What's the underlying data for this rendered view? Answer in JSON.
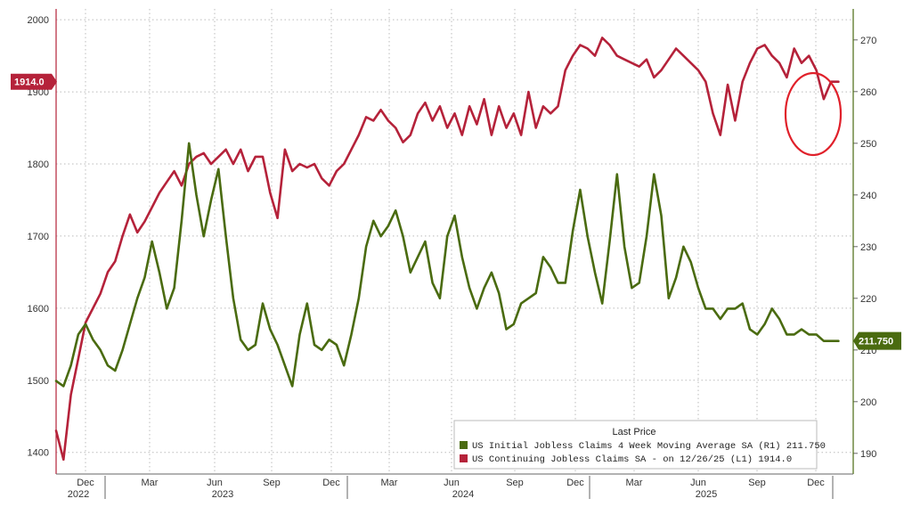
{
  "chart_data": {
    "type": "line",
    "x_labels": [
      "Dec",
      "Mar",
      "Jun",
      "Sep",
      "Dec",
      "Mar",
      "Jun",
      "Sep",
      "Dec",
      "Mar",
      "Jun",
      "Sep",
      "Dec"
    ],
    "year_labels": [
      "2022",
      "2023",
      "2024",
      "2025"
    ],
    "left_axis": {
      "ylim": [
        1370,
        2015
      ],
      "ticks": [
        1400,
        1500,
        1600,
        1700,
        1800,
        1900,
        2000
      ]
    },
    "right_axis": {
      "ylim": [
        186,
        276
      ],
      "ticks": [
        190,
        200,
        210,
        220,
        230,
        240,
        250,
        260,
        270
      ]
    },
    "legend": {
      "title": "Last Price",
      "entries": [
        "US Initial Jobless Claims 4 Week Moving Average SA  (R1) 211.750",
        "US Continuing Jobless Claims SA -  on 12/26/25  (L1)       1914.0"
      ],
      "placement": "bottom-right"
    },
    "last_value_tags": {
      "left": "1914.0",
      "right": "211.750"
    },
    "colors": {
      "initial_claims": "#4a6b10",
      "continuing_claims": "#b5223a",
      "grid": "#bbbbbb",
      "annotation": "#e0202a"
    },
    "series": [
      {
        "name": "US Continuing Jobless Claims SA",
        "axis": "left",
        "color": "#b5223a",
        "x": [
          0,
          1.5,
          3,
          4.5,
          6,
          7.5,
          9,
          10.5,
          12,
          13.5,
          15,
          16.5,
          18,
          19.5,
          21,
          22.5,
          24,
          25.5,
          27,
          28.5,
          30,
          31.5,
          33,
          34.5,
          36,
          37.5,
          39,
          40.5,
          42,
          43.5,
          45,
          46.5,
          48,
          49.5,
          51,
          52.5,
          54,
          55.5,
          57,
          58.5,
          60,
          61.5,
          63,
          64.5,
          66,
          67.5,
          69,
          70.5,
          72,
          73.5,
          75,
          76.5,
          78,
          79.5,
          81,
          82.5,
          84,
          85.5,
          87,
          88.5,
          90,
          91.5,
          93,
          94.5,
          96,
          97.5,
          99,
          100.5,
          102,
          103.5,
          105,
          106.5,
          108,
          109.5,
          111,
          112.5,
          114,
          115.5,
          117,
          118.5,
          120,
          121.5,
          123,
          124.5,
          126,
          127.5,
          129,
          130.5,
          132,
          133.5,
          135,
          136.5,
          138,
          139.5,
          141,
          142.5,
          144,
          145.5,
          147,
          148.5,
          150,
          151.5,
          153,
          154.5,
          156,
          157.5,
          159
        ],
        "values": [
          1430,
          1390,
          1480,
          1530,
          1580,
          1600,
          1620,
          1650,
          1665,
          1700,
          1730,
          1705,
          1720,
          1740,
          1760,
          1775,
          1790,
          1770,
          1800,
          1810,
          1815,
          1800,
          1810,
          1820,
          1800,
          1820,
          1790,
          1810,
          1810,
          1760,
          1725,
          1820,
          1790,
          1800,
          1795,
          1800,
          1780,
          1770,
          1790,
          1800,
          1820,
          1840,
          1865,
          1860,
          1875,
          1860,
          1850,
          1830,
          1840,
          1870,
          1885,
          1860,
          1880,
          1850,
          1870,
          1840,
          1880,
          1855,
          1890,
          1840,
          1880,
          1850,
          1870,
          1840,
          1900,
          1850,
          1880,
          1870,
          1880,
          1930,
          1950,
          1965,
          1960,
          1950,
          1975,
          1965,
          1950,
          1945,
          1940,
          1935,
          1945,
          1920,
          1930,
          1945,
          1960,
          1950,
          1940,
          1930,
          1914,
          1870,
          1840,
          1910,
          1860,
          1914,
          1940,
          1960,
          1965,
          1950,
          1940,
          1920,
          1960,
          1940,
          1950,
          1930,
          1890,
          1914,
          1914
        ],
        "note": "approximate trace"
      },
      {
        "name": "US Initial Jobless Claims 4 Week Moving Average SA",
        "axis": "right",
        "color": "#4a6b10",
        "x": [
          0,
          1.5,
          3,
          4.5,
          6,
          7.5,
          9,
          10.5,
          12,
          13.5,
          15,
          16.5,
          18,
          19.5,
          21,
          22.5,
          24,
          25.5,
          27,
          28.5,
          30,
          31.5,
          33,
          34.5,
          36,
          37.5,
          39,
          40.5,
          42,
          43.5,
          45,
          46.5,
          48,
          49.5,
          51,
          52.5,
          54,
          55.5,
          57,
          58.5,
          60,
          61.5,
          63,
          64.5,
          66,
          67.5,
          69,
          70.5,
          72,
          73.5,
          75,
          76.5,
          78,
          79.5,
          81,
          82.5,
          84,
          85.5,
          87,
          88.5,
          90,
          91.5,
          93,
          94.5,
          96,
          97.5,
          99,
          100.5,
          102,
          103.5,
          105,
          106.5,
          108,
          109.5,
          111,
          112.5,
          114,
          115.5,
          117,
          118.5,
          120,
          121.5,
          123,
          124.5,
          126,
          127.5,
          129,
          130.5,
          132,
          133.5,
          135,
          136.5,
          138,
          139.5,
          141,
          142.5,
          144,
          145.5,
          147,
          148.5,
          150,
          151.5,
          153,
          154.5,
          156,
          157.5,
          159
        ],
        "values": [
          204,
          203,
          207,
          213,
          215,
          212,
          210,
          207,
          206,
          210,
          215,
          220,
          224,
          231,
          225,
          218,
          222,
          235,
          250,
          240,
          232,
          239,
          245,
          232,
          220,
          212,
          210,
          211,
          219,
          214,
          211,
          207,
          203,
          213,
          219,
          211,
          210,
          212,
          211,
          207,
          213,
          220,
          230,
          235,
          232,
          234,
          237,
          232,
          225,
          228,
          231,
          223,
          220,
          232,
          236,
          228,
          222,
          218,
          222,
          225,
          221,
          214,
          215,
          219,
          220,
          221,
          228,
          226,
          223,
          223,
          233,
          241,
          232,
          225,
          219,
          231,
          244,
          230,
          222,
          223,
          232,
          244,
          236,
          220,
          224,
          230,
          227,
          222,
          218,
          218,
          216,
          218,
          218,
          219,
          214,
          213,
          215,
          218,
          216,
          213,
          213,
          214,
          213,
          213,
          211.75,
          211.75,
          211.75
        ],
        "note": "approximate trace"
      }
    ]
  }
}
